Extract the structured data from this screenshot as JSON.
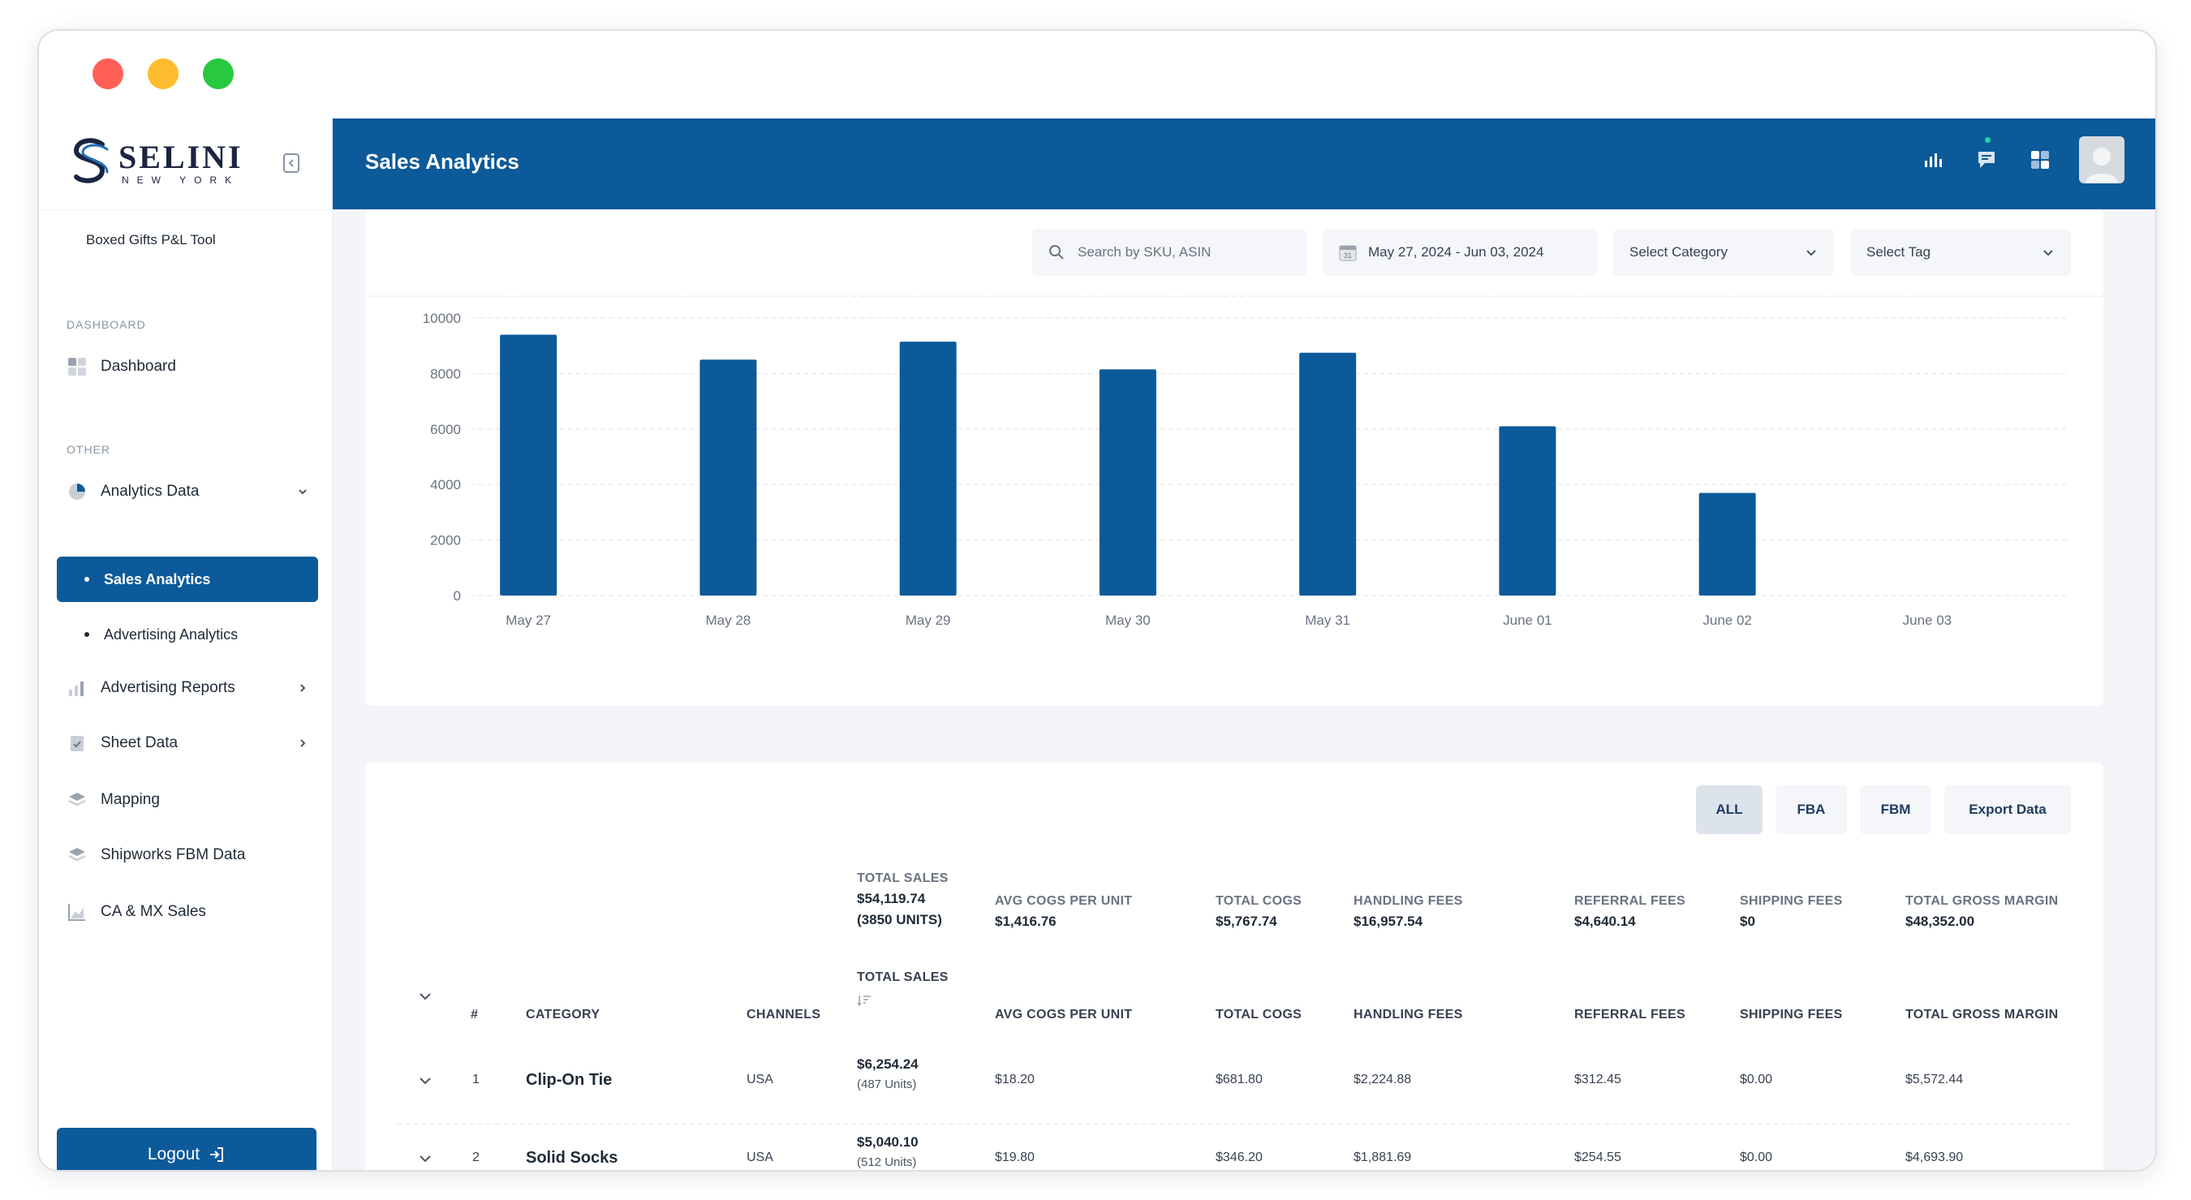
{
  "brand": {
    "name": "SELINI",
    "sub": "NEW YORK"
  },
  "sidebar": {
    "tool_name": "Boxed Gifts P&L Tool",
    "section_dashboard": "DASHBOARD",
    "dashboard_label": "Dashboard",
    "section_other": "OTHER",
    "items": [
      {
        "label": "Analytics Data",
        "icon": "pie-chart-icon"
      },
      {
        "label": "Sales Analytics"
      },
      {
        "label": "Advertising Analytics"
      },
      {
        "label": "Advertising Reports",
        "icon": "bar-chart-icon"
      },
      {
        "label": "Sheet Data",
        "icon": "clipboard-icon"
      },
      {
        "label": "Mapping",
        "icon": "layers-icon"
      },
      {
        "label": "Shipworks FBM Data",
        "icon": "layers-icon"
      },
      {
        "label": "CA & MX Sales",
        "icon": "area-chart-icon"
      }
    ],
    "logout_label": "Logout"
  },
  "header": {
    "title": "Sales Analytics"
  },
  "filters": {
    "search_placeholder": "Search by SKU, ASIN",
    "date_range": "May 27, 2024 - Jun 03, 2024",
    "category": "Select Category",
    "tag": "Select Tag",
    "calendar_day": "31"
  },
  "colors": {
    "primary": "#0c5a9a",
    "bar": "#0c5a9a"
  },
  "chart_data": {
    "type": "bar",
    "categories": [
      "May 27",
      "May 28",
      "May 29",
      "May 30",
      "May 31",
      "June 01",
      "June 02",
      "June 03"
    ],
    "values": [
      9400,
      8500,
      9150,
      8150,
      8750,
      6100,
      3700,
      0
    ],
    "ylim": [
      0,
      10000
    ],
    "yticks": [
      0,
      2000,
      4000,
      6000,
      8000,
      10000
    ],
    "grid": true
  },
  "table": {
    "segments": [
      "ALL",
      "FBA",
      "FBM",
      "Export Data"
    ],
    "totals": {
      "sales_label": "TOTAL SALES",
      "sales_value": "$54,119.74",
      "sales_units": "(3850 UNITS)",
      "avg_cogs_label": "AVG COGS PER UNIT",
      "avg_cogs_value": "$1,416.76",
      "cogs_label": "TOTAL COGS",
      "cogs_value": "$5,767.74",
      "handling_label": "HANDLING FEES",
      "handling_value": "$16,957.54",
      "referral_label": "REFERRAL FEES",
      "referral_value": "$4,640.14",
      "shipping_label": "SHIPPING FEES",
      "shipping_value": "$0",
      "margin_label": "TOTAL GROSS MARGIN",
      "margin_value": "$48,352.00"
    },
    "columns": {
      "num": "#",
      "category": "CATEGORY",
      "channels": "CHANNELS",
      "sales": "TOTAL SALES",
      "avg_cogs": "AVG COGS PER UNIT",
      "cogs": "TOTAL COGS",
      "handling": "HANDLING FEES",
      "referral": "REFERRAL FEES",
      "shipping": "SHIPPING FEES",
      "margin": "TOTAL GROSS MARGIN"
    },
    "rows": [
      {
        "num": "1",
        "category": "Clip-On Tie",
        "channels": "USA",
        "sales": "$6,254.24",
        "units": "(487 Units)",
        "avg_cogs": "$18.20",
        "cogs": "$681.80",
        "handling": "$2,224.88",
        "referral": "$312.45",
        "shipping": "$0.00",
        "margin": "$5,572.44"
      },
      {
        "num": "2",
        "category": "Solid Socks",
        "channels": "USA",
        "sales": "$5,040.10",
        "units": "(512 Units)",
        "avg_cogs": "$19.80",
        "cogs": "$346.20",
        "handling": "$1,881.69",
        "referral": "$254.55",
        "shipping": "$0.00",
        "margin": "$4,693.90"
      }
    ]
  }
}
